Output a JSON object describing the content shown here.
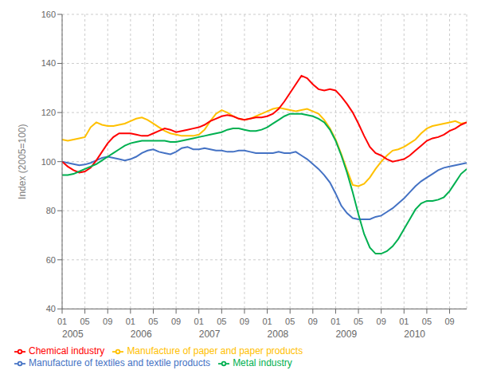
{
  "chart_data": {
    "type": "line",
    "title": "",
    "ylabel": "Index (2005=100)",
    "categories": [
      "01",
      null,
      null,
      null,
      "05",
      null,
      null,
      null,
      "09",
      null,
      null,
      null,
      "01",
      null,
      null,
      null,
      "05",
      null,
      null,
      null,
      "09",
      null,
      null,
      null,
      "01",
      null,
      null,
      null,
      "05",
      null,
      null,
      null,
      "09",
      null,
      null,
      null,
      "01",
      null,
      null,
      null,
      "05",
      null,
      null,
      null,
      "09",
      null,
      null,
      null,
      "01",
      null,
      null,
      null,
      "05",
      null,
      null,
      null,
      "09",
      null,
      null,
      null,
      "01",
      null,
      null,
      null,
      "05",
      null,
      null,
      null,
      "09",
      null,
      null,
      null
    ],
    "annotations": [
      {
        "text": "2005",
        "x": 0
      },
      {
        "text": "2006",
        "x": 12
      },
      {
        "text": "2007",
        "x": 24
      },
      {
        "text": "2008",
        "x": 36
      },
      {
        "text": "2009",
        "x": 48
      },
      {
        "text": "2010",
        "x": 60
      }
    ],
    "ylim": [
      40,
      160
    ],
    "yticks": [
      40,
      60,
      80,
      100,
      120,
      140,
      160
    ],
    "grid": true,
    "legend": "bottom",
    "series": [
      {
        "name": "Manufacture of textiles and textile products",
        "color": "#4472C4",
        "values": [
          100.0,
          99.5,
          99.0,
          98.5,
          98.8,
          99.5,
          100.5,
          101.5,
          102.0,
          101.5,
          101.0,
          100.5,
          101.0,
          102.0,
          103.5,
          104.5,
          105.0,
          104.0,
          103.5,
          103.0,
          104.0,
          105.5,
          106.0,
          105.0,
          105.0,
          105.5,
          105.0,
          104.5,
          104.5,
          104.0,
          104.0,
          104.5,
          104.5,
          104.0,
          103.5,
          103.5,
          103.5,
          103.5,
          104.0,
          103.5,
          103.5,
          104.0,
          102.5,
          101.0,
          99.0,
          97.0,
          94.5,
          91.5,
          87.0,
          82.0,
          79.0,
          77.0,
          76.5,
          76.5,
          76.5,
          77.5,
          78.0,
          79.5,
          81.0,
          83.0,
          85.0,
          87.5,
          90.0,
          92.0,
          93.5,
          95.0,
          96.5,
          97.5,
          98.0,
          98.5,
          99.0,
          99.5
        ]
      },
      {
        "name": "Manufacture of paper and paper products",
        "color": "#FFC000",
        "values": [
          109.0,
          108.5,
          109.0,
          109.5,
          110.0,
          114.0,
          116.0,
          115.0,
          114.5,
          114.5,
          115.0,
          115.5,
          116.5,
          117.5,
          118.0,
          117.0,
          115.5,
          114.0,
          112.5,
          111.5,
          111.0,
          110.5,
          110.5,
          110.5,
          111.0,
          113.0,
          116.5,
          119.5,
          121.0,
          120.0,
          118.5,
          117.5,
          117.0,
          117.5,
          118.5,
          119.5,
          120.5,
          121.5,
          122.0,
          121.5,
          121.0,
          120.5,
          121.0,
          121.5,
          120.5,
          119.5,
          117.0,
          113.5,
          109.0,
          103.0,
          96.5,
          90.5,
          90.0,
          91.0,
          93.5,
          97.0,
          100.0,
          102.5,
          104.5,
          105.0,
          106.0,
          107.5,
          109.0,
          111.5,
          113.5,
          114.5,
          115.0,
          115.5,
          116.0,
          116.5,
          115.5,
          116.0
        ]
      },
      {
        "name": "Chemical industry",
        "color": "#FF0000",
        "values": [
          100.0,
          98.0,
          96.5,
          95.5,
          96.0,
          97.5,
          100.5,
          104.0,
          107.5,
          110.0,
          111.5,
          111.5,
          111.5,
          111.0,
          110.5,
          110.5,
          111.5,
          112.5,
          113.5,
          113.0,
          112.0,
          112.5,
          113.0,
          113.5,
          114.0,
          115.0,
          116.5,
          117.5,
          118.5,
          119.0,
          118.5,
          117.5,
          117.0,
          117.5,
          118.0,
          118.0,
          118.5,
          119.5,
          121.5,
          124.5,
          128.0,
          131.5,
          135.0,
          134.0,
          131.5,
          129.5,
          129.0,
          129.5,
          129.0,
          126.5,
          123.5,
          120.0,
          115.5,
          110.5,
          106.0,
          103.5,
          102.5,
          101.0,
          100.0,
          100.5,
          101.0,
          102.5,
          104.5,
          106.5,
          108.5,
          109.5,
          110.0,
          111.0,
          112.5,
          113.5,
          115.0,
          116.0
        ]
      },
      {
        "name": "Metal industry",
        "color": "#00B050",
        "values": [
          94.5,
          94.5,
          95.0,
          96.0,
          97.0,
          98.0,
          99.0,
          100.5,
          102.0,
          103.5,
          105.0,
          106.5,
          107.5,
          108.0,
          108.5,
          108.5,
          108.5,
          108.5,
          108.5,
          108.0,
          108.0,
          108.5,
          109.0,
          109.5,
          110.0,
          110.5,
          111.0,
          111.5,
          112.0,
          113.0,
          113.5,
          113.5,
          113.0,
          112.5,
          112.5,
          113.0,
          114.0,
          115.5,
          117.0,
          118.5,
          119.5,
          119.5,
          119.5,
          119.0,
          118.5,
          117.5,
          116.0,
          113.0,
          108.5,
          102.5,
          95.5,
          87.5,
          78.5,
          70.5,
          65.0,
          62.5,
          62.5,
          63.5,
          65.5,
          68.5,
          72.5,
          76.5,
          80.5,
          83.0,
          84.0,
          84.0,
          84.5,
          85.5,
          88.0,
          91.5,
          95.0,
          97.0
        ]
      }
    ]
  }
}
